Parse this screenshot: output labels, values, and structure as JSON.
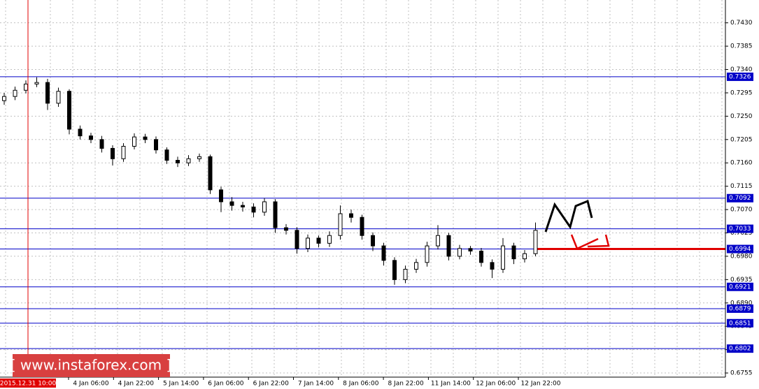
{
  "chart_data": {
    "type": "candlestick",
    "ylim": [
      0.6747,
      0.7474
    ],
    "yticks": [
      {
        "value": 0.743,
        "label": "0.7430"
      },
      0.7385,
      {
        "value": 0.734,
        "label": "0.7340"
      },
      0.7295,
      {
        "value": 0.725,
        "label": "0.7250"
      },
      0.7205,
      {
        "value": 0.716,
        "label": "0.7160"
      },
      0.7115,
      {
        "value": 0.707,
        "label": "0.7070"
      },
      0.7025,
      {
        "value": 0.698,
        "label": "0.6980"
      },
      0.6935,
      {
        "value": 0.689,
        "label": "0.6890"
      },
      0.6845,
      {
        "value": 0.68,
        "label": "0.6800"
      },
      0.6755
    ],
    "grid": true,
    "x_tick_labels": [
      "4 Jan 06:00",
      "4 Jan 22:00",
      "5 Jan 14:00",
      "6 Jan 06:00",
      "6 Jan 22:00",
      "7 Jan 14:00",
      "8 Jan 06:00",
      "8 Jan 22:00",
      "11 Jan 14:00",
      "12 Jan 06:00",
      "12 Jan 22:00"
    ],
    "open": [
      0.728,
      0.7288,
      0.73,
      0.7312,
      0.7315,
      0.7275,
      0.7298,
      0.7225,
      0.7212,
      0.7205,
      0.7188,
      0.7168,
      0.7192,
      0.721,
      0.7205,
      0.7185,
      0.7165,
      0.716,
      0.7168,
      0.7172,
      0.7108,
      0.7085,
      0.7078,
      0.7075,
      0.7065,
      0.7085,
      0.7035,
      0.703,
      0.6995,
      0.7015,
      0.7005,
      0.702,
      0.7062,
      0.7055,
      0.702,
      0.7,
      0.6972,
      0.6935,
      0.6955,
      0.6968,
      0.7,
      0.702,
      0.698,
      0.6995,
      0.699,
      0.6968,
      0.6955,
      0.7,
      0.6975,
      0.6985
    ],
    "high": [
      0.7295,
      0.7307,
      0.7319,
      0.7325,
      0.7322,
      0.7305,
      0.7302,
      0.7232,
      0.7218,
      0.7212,
      0.7194,
      0.7198,
      0.7217,
      0.7216,
      0.7211,
      0.719,
      0.7172,
      0.7175,
      0.7178,
      0.7176,
      0.7114,
      0.7094,
      0.7085,
      0.7082,
      0.7092,
      0.709,
      0.7042,
      0.7036,
      0.7022,
      0.702,
      0.7028,
      0.7078,
      0.707,
      0.706,
      0.7026,
      0.7006,
      0.6978,
      0.6962,
      0.6975,
      0.7008,
      0.704,
      0.7025,
      0.7002,
      0.7,
      0.6996,
      0.6974,
      0.7015,
      0.7006,
      0.6992,
      0.7045
    ],
    "low": [
      0.7272,
      0.7281,
      0.7294,
      0.7306,
      0.7262,
      0.7268,
      0.7215,
      0.7205,
      0.7198,
      0.718,
      0.7155,
      0.7162,
      0.7186,
      0.7198,
      0.7178,
      0.7158,
      0.7152,
      0.7154,
      0.7162,
      0.71,
      0.7065,
      0.7068,
      0.7066,
      0.7055,
      0.7058,
      0.7025,
      0.7022,
      0.6985,
      0.6988,
      0.6997,
      0.6998,
      0.7012,
      0.7045,
      0.7012,
      0.699,
      0.6962,
      0.6925,
      0.6928,
      0.6948,
      0.696,
      0.6993,
      0.6972,
      0.6974,
      0.6983,
      0.696,
      0.6938,
      0.6948,
      0.6965,
      0.6968,
      0.698
    ],
    "close": [
      0.7288,
      0.73,
      0.7312,
      0.7315,
      0.7275,
      0.7298,
      0.7225,
      0.7212,
      0.7205,
      0.7188,
      0.7168,
      0.7192,
      0.721,
      0.7205,
      0.7185,
      0.7165,
      0.716,
      0.7168,
      0.7172,
      0.7108,
      0.7085,
      0.7078,
      0.7075,
      0.7065,
      0.7085,
      0.7035,
      0.703,
      0.6995,
      0.7015,
      0.7005,
      0.702,
      0.7062,
      0.7055,
      0.702,
      0.7,
      0.6972,
      0.6935,
      0.6955,
      0.6968,
      0.7,
      0.702,
      0.698,
      0.6995,
      0.699,
      0.6968,
      0.6955,
      0.7,
      0.6975,
      0.6985,
      0.703
    ],
    "levels": [
      0.7326,
      0.7092,
      0.7033,
      0.6994,
      0.6921,
      0.6879,
      0.6851,
      0.6802
    ],
    "level_color": "#0000c8",
    "support_level": 0.6994,
    "support_color": "#e00000",
    "marker_label": "2015.12.31 10:00",
    "watermark": "[ www.instaforex.com ]"
  }
}
